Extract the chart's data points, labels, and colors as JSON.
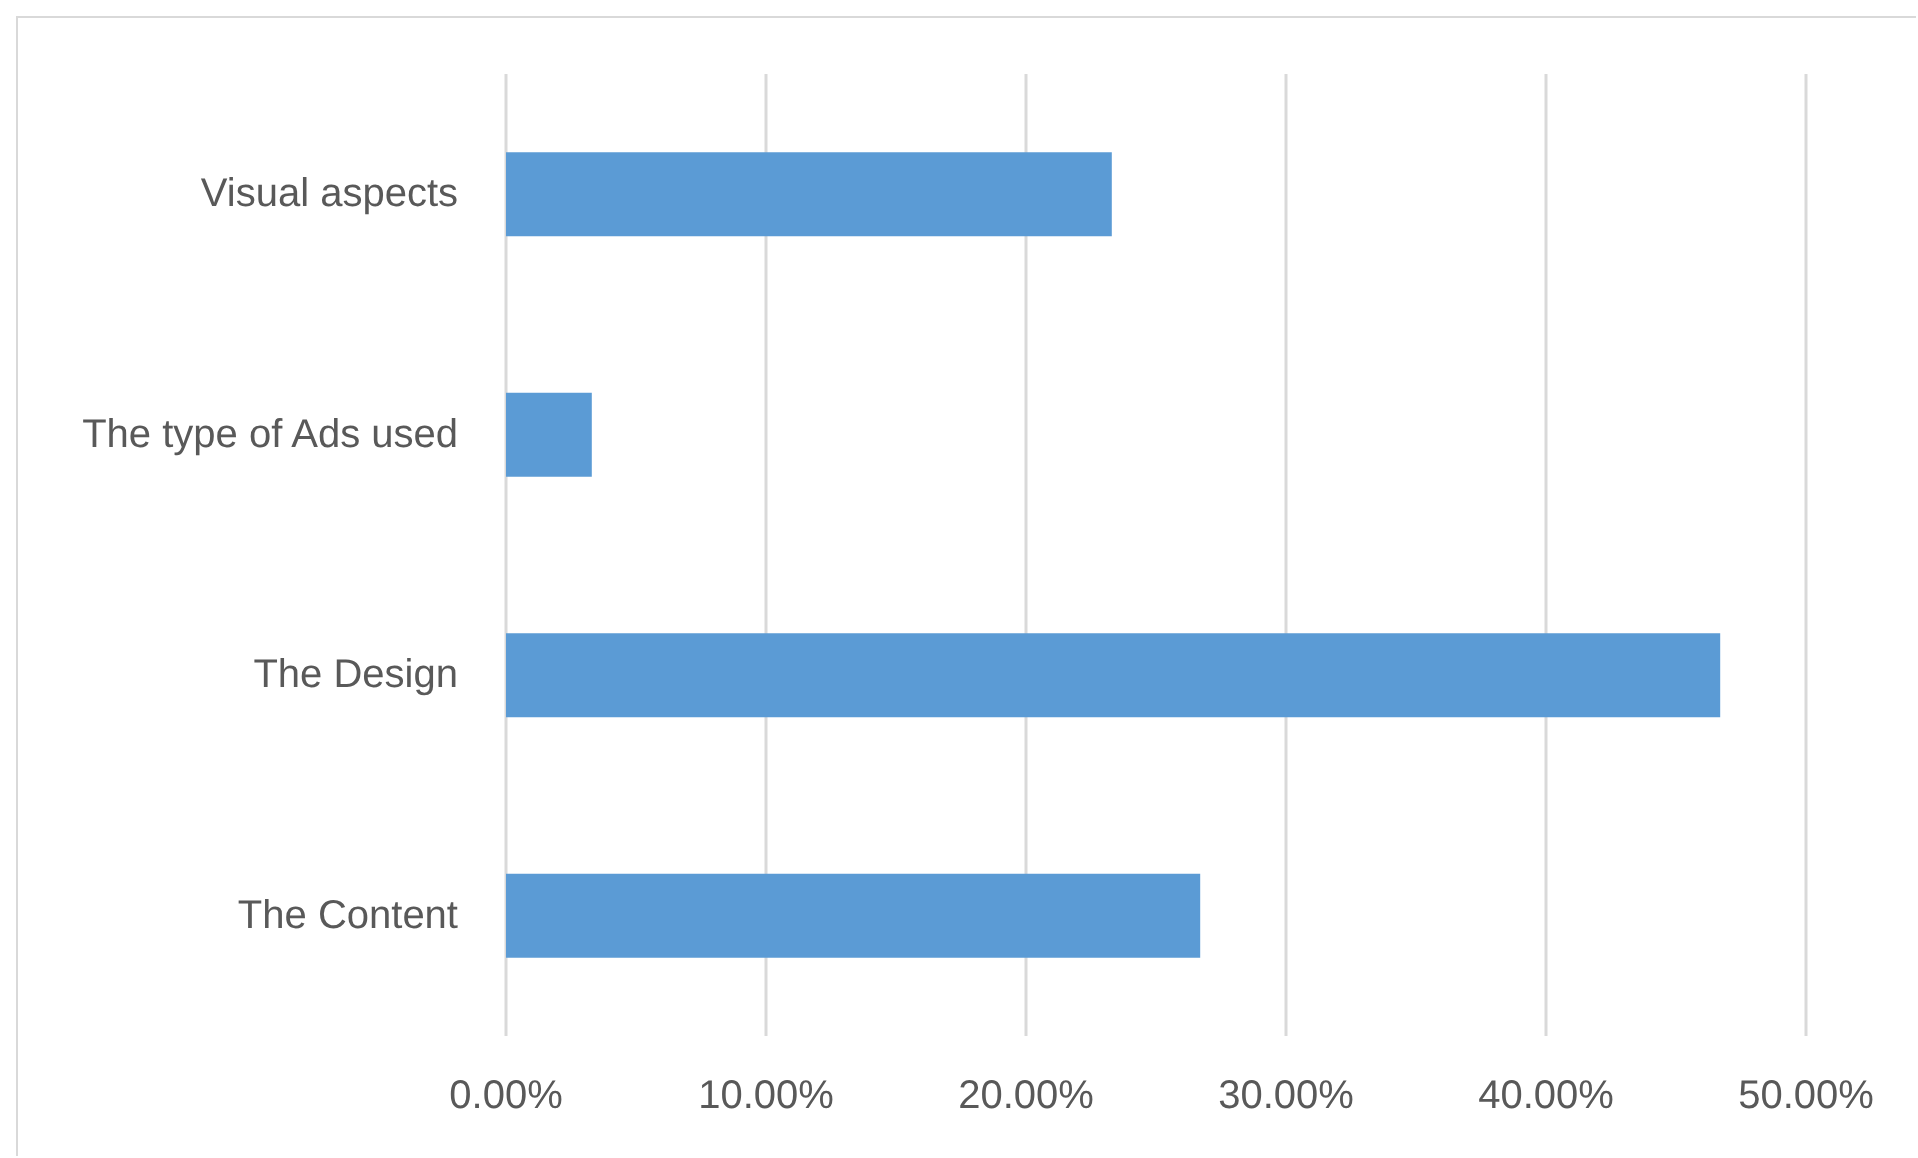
{
  "chart_data": {
    "type": "bar",
    "orientation": "horizontal",
    "categories": [
      "Visual aspects",
      "The type of Ads used",
      "The Design",
      "The Content"
    ],
    "values": [
      23.3,
      3.3,
      46.7,
      26.7
    ],
    "color": "#5b9bd5",
    "xlim": [
      0,
      50
    ],
    "xticks": [
      {
        "value": 0,
        "label": "0.00%"
      },
      {
        "value": 10,
        "label": "10.00%"
      },
      {
        "value": 20,
        "label": "20.00%"
      },
      {
        "value": 30,
        "label": "30.00%"
      },
      {
        "value": 40,
        "label": "40.00%"
      },
      {
        "value": 50,
        "label": "50.00%"
      }
    ],
    "grid": "x"
  }
}
